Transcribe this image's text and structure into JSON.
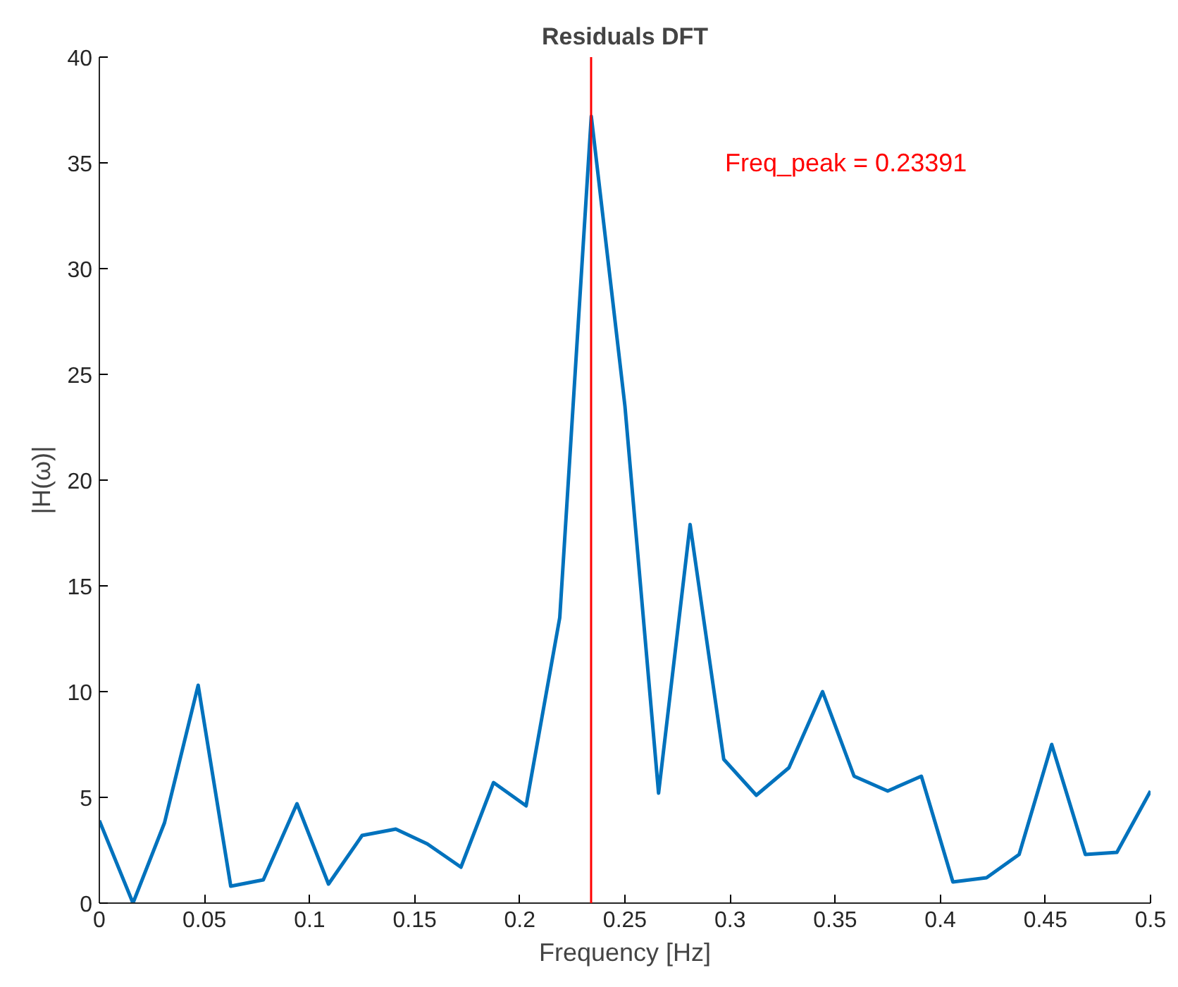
{
  "chart_data": {
    "type": "line",
    "title": "Residuals DFT",
    "xlabel": "Frequency [Hz]",
    "ylabel": "|H(ω)|",
    "x": [
      0,
      0.016,
      0.031,
      0.047,
      0.0625,
      0.078,
      0.094,
      0.109,
      0.125,
      0.141,
      0.156,
      0.172,
      0.1875,
      0.203,
      0.219,
      0.234,
      0.25,
      0.266,
      0.281,
      0.297,
      0.3125,
      0.328,
      0.344,
      0.359,
      0.375,
      0.391,
      0.406,
      0.422,
      0.4375,
      0.453,
      0.469,
      0.484,
      0.5
    ],
    "series": [
      {
        "color": "#0072bd",
        "values": [
          3.9,
          0.0,
          3.8,
          10.3,
          0.8,
          1.1,
          4.7,
          0.9,
          3.2,
          3.5,
          2.8,
          1.7,
          5.7,
          4.6,
          13.5,
          37.2,
          23.5,
          5.2,
          17.9,
          6.8,
          5.1,
          6.4,
          10.0,
          6.0,
          5.3,
          6.0,
          1.0,
          1.2,
          2.3,
          7.5,
          2.3,
          2.4,
          5.3
        ]
      }
    ],
    "ref_lines": [
      {
        "axis": "x",
        "value": 0.23391,
        "label": "Freq_peak = 0.23391",
        "color": "#ff0000"
      }
    ],
    "xlim": [
      0,
      0.5
    ],
    "ylim": [
      0,
      40
    ],
    "xticks": [
      0,
      0.05,
      0.1,
      0.15,
      0.2,
      0.25,
      0.3,
      0.35,
      0.4,
      0.45,
      0.5
    ],
    "yticks": [
      0,
      5,
      10,
      15,
      20,
      25,
      30,
      35,
      40
    ],
    "grid": false,
    "marker": "none",
    "line_style": "solid"
  }
}
